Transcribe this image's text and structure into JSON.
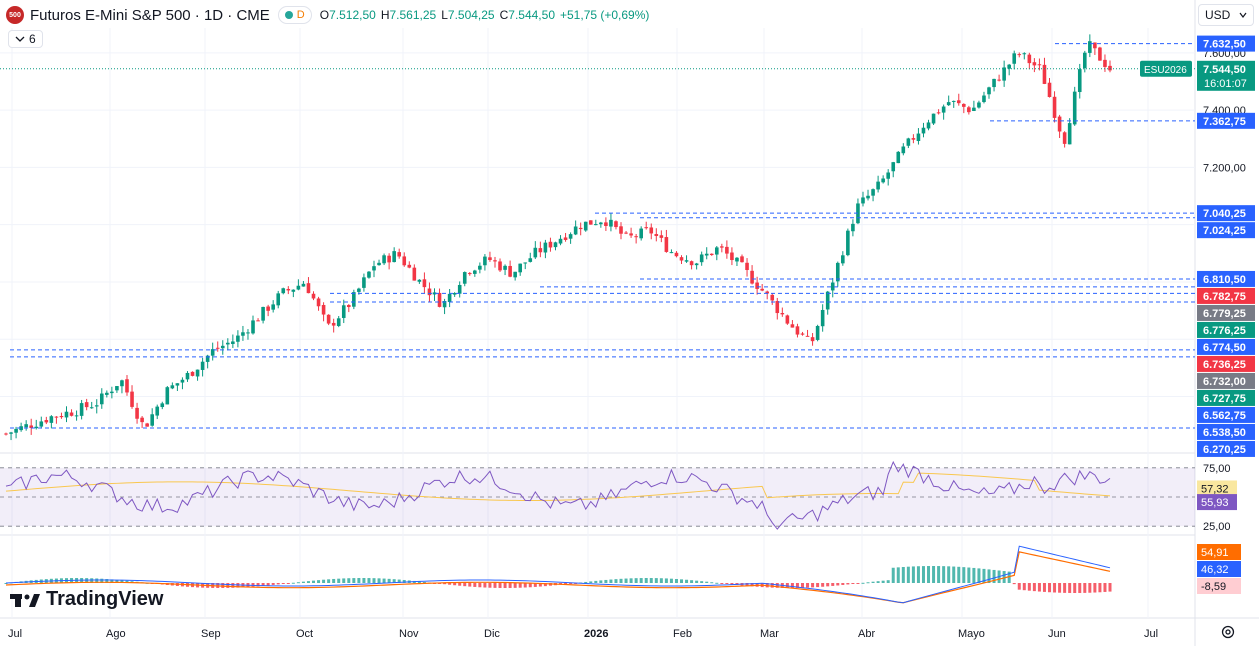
{
  "header": {
    "symbol_badge": "500",
    "title": "Futuros E-Mini S&P 500 · 1D · CME",
    "market_status_letter": "D",
    "ohlc": [
      {
        "label": "O",
        "value": "7.512,50"
      },
      {
        "label": "H",
        "value": "7.561,25"
      },
      {
        "label": "L",
        "value": "7.504,25"
      },
      {
        "label": "C",
        "value": "7.544,50"
      }
    ],
    "change": "+51,75 (+0,69%)"
  },
  "indicators_toggle": {
    "count": "6"
  },
  "currency_button": "USD",
  "branding": "TradingView",
  "price_axis": {
    "ticks": [
      "7.600,00",
      "7.400,00",
      "7.200,00"
    ],
    "range": [
      6220,
      7680
    ]
  },
  "symbol_tag": "ESU2026",
  "price_labels": [
    {
      "text": "7.632,50",
      "value": 7632.5,
      "color": "#2962ff"
    },
    {
      "text": "7.544,50",
      "value": 7544.5,
      "color": "#089981",
      "sub": "16:01:07"
    },
    {
      "text": "7.362,75",
      "value": 7362.75,
      "color": "#2962ff"
    },
    {
      "text": "7.040,25",
      "value": 7040.25,
      "color": "#2962ff"
    },
    {
      "text": "7.024,25",
      "value": 7024.25,
      "color": "#2962ff"
    },
    {
      "text": "6.810,50",
      "value": 6810.5,
      "color": "#2962ff"
    },
    {
      "text": "6.782,75",
      "value": 6782.75,
      "color": "#f23645"
    },
    {
      "text": "6.779,25",
      "value": 6779.25,
      "color": "#787b86"
    },
    {
      "text": "6.776,25",
      "value": 6776.25,
      "color": "#089981"
    },
    {
      "text": "6.774,50",
      "value": 6774.5,
      "color": "#2962ff"
    },
    {
      "text": "6.736,25",
      "value": 6736.25,
      "color": "#f23645"
    },
    {
      "text": "6.732,00",
      "value": 6732.0,
      "color": "#787b86"
    },
    {
      "text": "6.727,75",
      "value": 6727.75,
      "color": "#089981"
    },
    {
      "text": "6.562,75",
      "value": 6562.75,
      "color": "#2962ff"
    },
    {
      "text": "6.538,50",
      "value": 6538.5,
      "color": "#2962ff"
    },
    {
      "text": "6.270,25",
      "value": 6270.25,
      "color": "#2962ff"
    }
  ],
  "hlines": [
    7632.5,
    7362.75,
    7040.25,
    7024.25,
    6810.5,
    6782.75,
    6562.75,
    6538.5,
    6290
  ],
  "rsi": {
    "levels": [
      "75,00",
      "50,00",
      "25,00"
    ],
    "labels": [
      {
        "text": "57,32",
        "value": 57.32,
        "color": "#f9e79f",
        "textColor": "#131722"
      },
      {
        "text": "55,93",
        "value": 55.93,
        "color": "#7e57c2",
        "textColor": "#ffffff"
      }
    ]
  },
  "macd": {
    "labels": [
      {
        "text": "54,91",
        "color": "#ff6d00",
        "textColor": "#ffffff"
      },
      {
        "text": "46,32",
        "color": "#2962ff",
        "textColor": "#ffffff"
      },
      {
        "text": "-8,59",
        "color": "#ffcdd2",
        "textColor": "#131722"
      }
    ]
  },
  "time_axis": [
    "Jul",
    "Ago",
    "Sep",
    "Oct",
    "Nov",
    "Dic",
    "2026",
    "Feb",
    "Mar",
    "Abr",
    "Mayo",
    "Jun",
    "Jul"
  ],
  "chart_data": {
    "type": "candlestick",
    "title": "Futuros E-Mini S&P 500 · 1D · CME",
    "price_range": [
      6220,
      7680
    ],
    "close_path": [
      [
        "Jul",
        6270
      ],
      [
        "Jul",
        6300
      ],
      [
        "Jul",
        6330
      ],
      [
        "Jul",
        6350
      ],
      [
        "Ago",
        6380
      ],
      [
        "Ago",
        6460
      ],
      [
        "Ago",
        6290
      ],
      [
        "Ago",
        6420
      ],
      [
        "Sep",
        6480
      ],
      [
        "Sep",
        6560
      ],
      [
        "Sep",
        6600
      ],
      [
        "Sep",
        6680
      ],
      [
        "Oct",
        6760
      ],
      [
        "Oct",
        6800
      ],
      [
        "Oct",
        6640
      ],
      [
        "Oct",
        6730
      ],
      [
        "Nov",
        6860
      ],
      [
        "Nov",
        6900
      ],
      [
        "Nov",
        6800
      ],
      [
        "Nov",
        6720
      ],
      [
        "Dic",
        6840
      ],
      [
        "Dic",
        6880
      ],
      [
        "Dic",
        6830
      ],
      [
        "Dic",
        6900
      ],
      [
        "2026",
        6950
      ],
      [
        "2026",
        7000
      ],
      [
        "2026",
        7020
      ],
      [
        "2026",
        6950
      ],
      [
        "Feb",
        6980
      ],
      [
        "Feb",
        6900
      ],
      [
        "Feb",
        6870
      ],
      [
        "Feb",
        6920
      ],
      [
        "Mar",
        6850
      ],
      [
        "Mar",
        6760
      ],
      [
        "Mar",
        6660
      ],
      [
        "Mar",
        6580
      ],
      [
        "Abr",
        6820
      ],
      [
        "Abr",
        7060
      ],
      [
        "Abr",
        7140
      ],
      [
        "Abr",
        7260
      ],
      [
        "Mayo",
        7360
      ],
      [
        "Mayo",
        7430
      ],
      [
        "Mayo",
        7400
      ],
      [
        "Mayo",
        7500
      ],
      [
        "Jun",
        7600
      ],
      [
        "Jun",
        7540
      ],
      [
        "Jun",
        7290
      ],
      [
        "Jun",
        7632
      ],
      [
        "Jun",
        7545
      ]
    ]
  }
}
